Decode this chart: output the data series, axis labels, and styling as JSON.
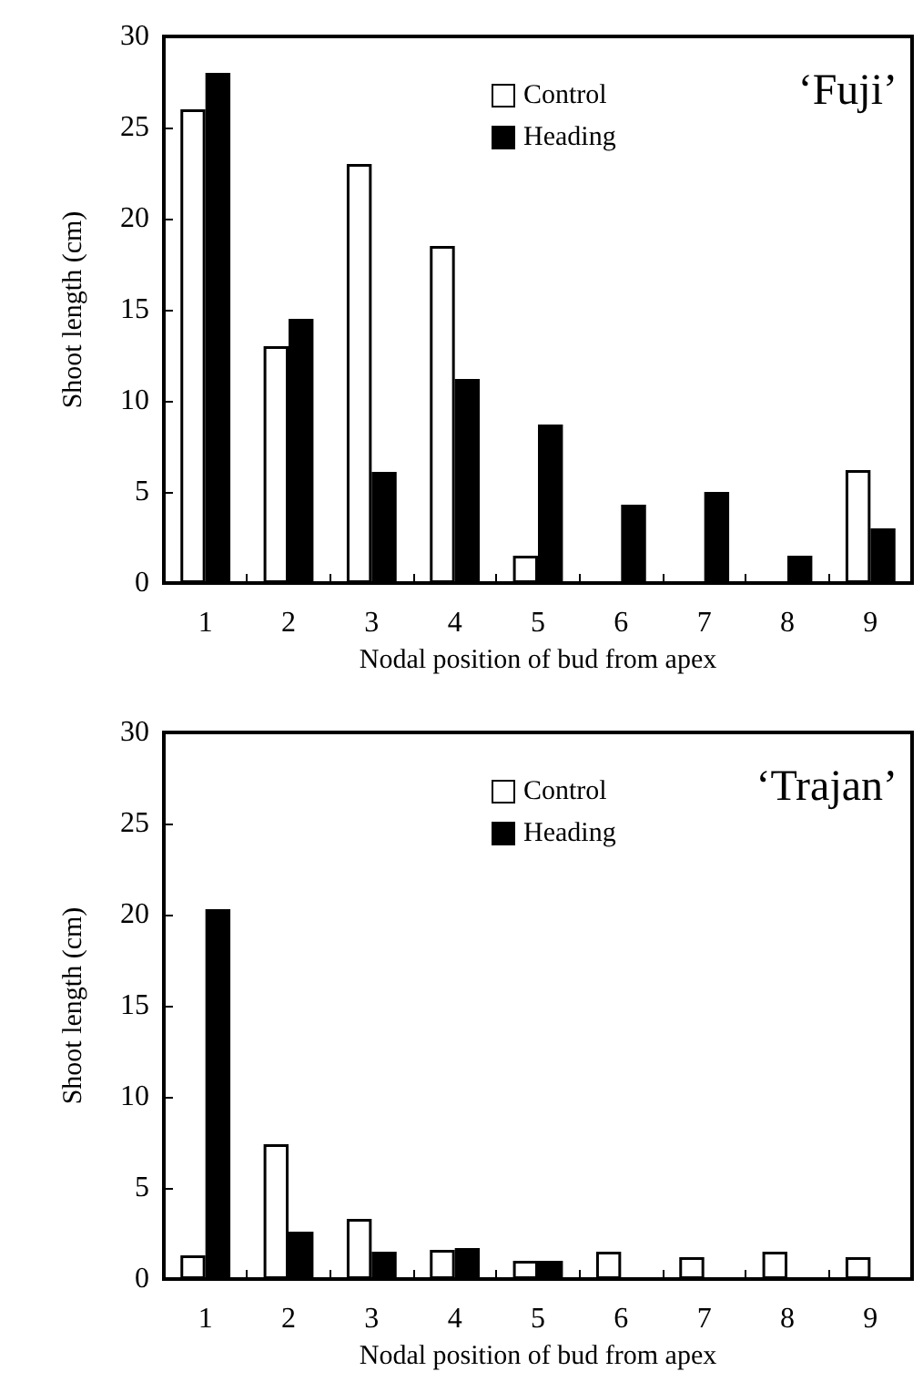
{
  "chart_data": [
    {
      "type": "bar",
      "categories": [
        "1",
        "2",
        "3",
        "4",
        "5",
        "6",
        "7",
        "8",
        "9"
      ],
      "xlabel": "Nodal position of bud from apex",
      "ylabel": "Shoot length (cm)",
      "annotations": [
        "‘Fuji’"
      ],
      "ylim": [
        0,
        30
      ],
      "yticks": [
        0,
        5,
        10,
        15,
        20,
        25,
        30
      ],
      "legend": "top right",
      "series": [
        {
          "name": "Control",
          "color": "#ffffff",
          "values": [
            26,
            13,
            23,
            18.5,
            1.5,
            0,
            0,
            0,
            6.2
          ]
        },
        {
          "name": "Heading",
          "color": "#000000",
          "values": [
            28,
            14.5,
            6.1,
            11.2,
            8.7,
            4.3,
            5,
            1.5,
            3
          ]
        }
      ]
    },
    {
      "type": "bar",
      "categories": [
        "1",
        "2",
        "3",
        "4",
        "5",
        "6",
        "7",
        "8",
        "9"
      ],
      "xlabel": "Nodal position of bud from apex",
      "ylabel": "Shoot length (cm)",
      "annotations": [
        "‘Trajan’"
      ],
      "ylim": [
        0,
        30
      ],
      "yticks": [
        0,
        5,
        10,
        15,
        20,
        25,
        30
      ],
      "legend": "top right",
      "series": [
        {
          "name": "Control",
          "color": "#ffffff",
          "values": [
            1.3,
            7.4,
            3.3,
            1.6,
            1,
            1.5,
            1.2,
            1.5,
            1.2
          ]
        },
        {
          "name": "Heading",
          "color": "#000000",
          "values": [
            20.3,
            2.6,
            1.5,
            1.7,
            1,
            0,
            0,
            0,
            0
          ]
        }
      ]
    }
  ]
}
